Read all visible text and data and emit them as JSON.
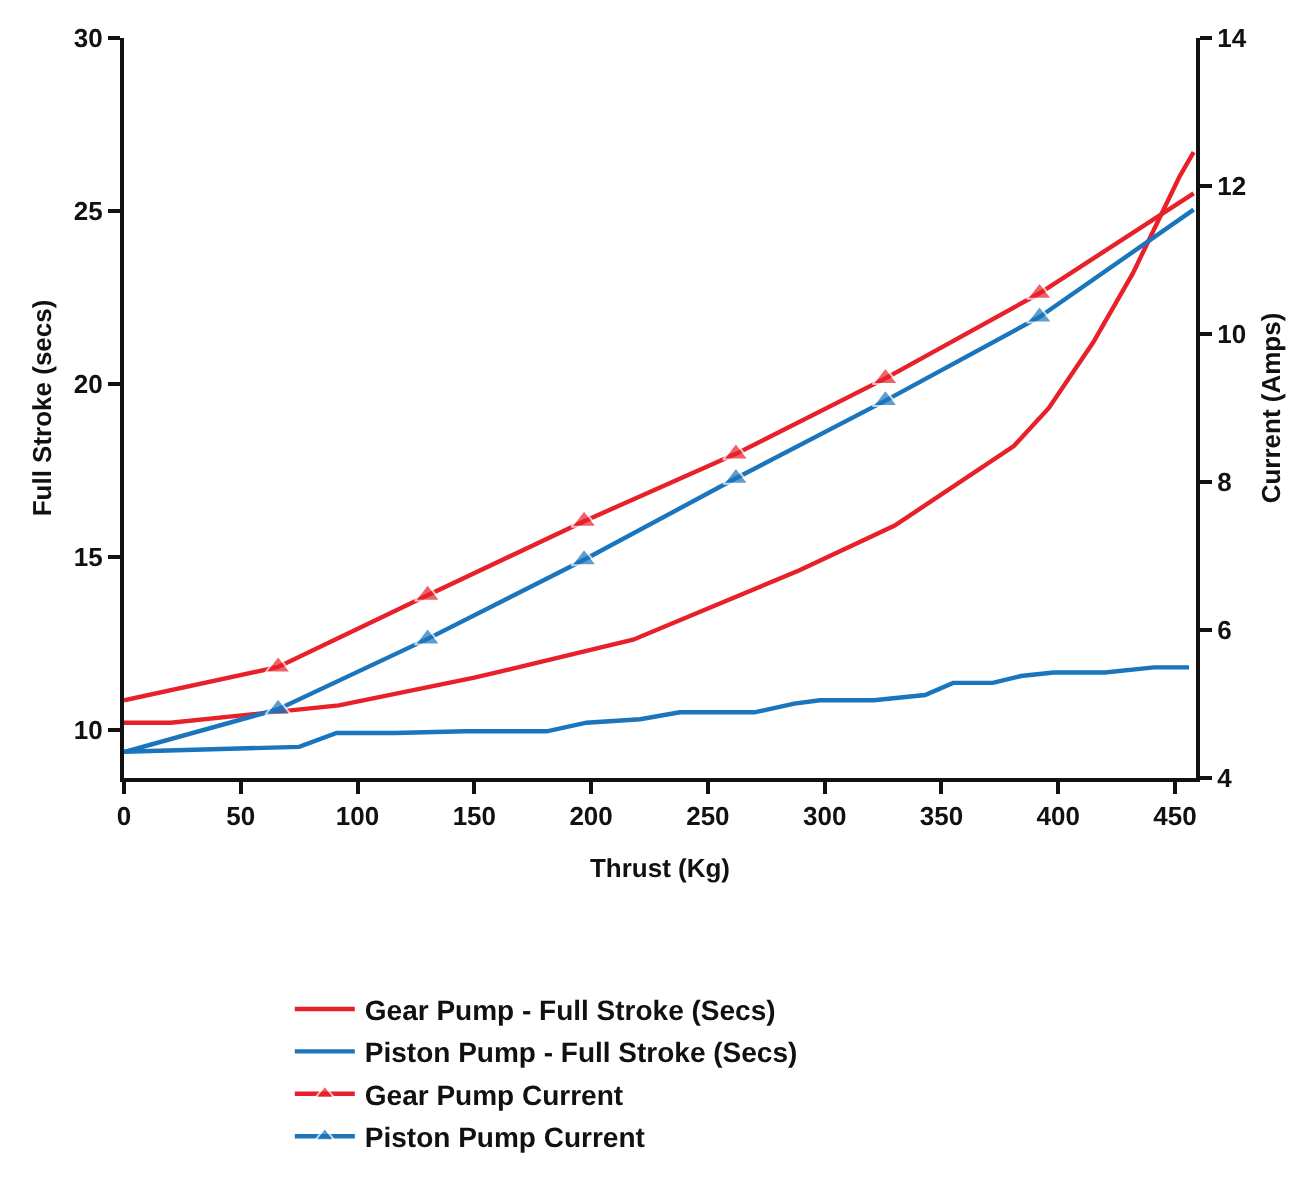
{
  "chart_data": {
    "type": "line",
    "xlabel": "Thrust (Kg)",
    "ylabel": "Full Stroke (secs)",
    "y2label": "Current (Amps)",
    "xlim": [
      0,
      459
    ],
    "xticks": [
      0,
      50,
      100,
      150,
      200,
      250,
      300,
      350,
      400,
      450
    ],
    "ylim": [
      8.6,
      30
    ],
    "yticks": [
      10,
      15,
      20,
      25,
      30
    ],
    "y2lim": [
      4,
      14
    ],
    "y2ticks": [
      4,
      6,
      8,
      10,
      12,
      14
    ],
    "grid": false,
    "legend": "bottom",
    "line_style": "solid",
    "series": [
      {
        "name": "Gear Pump - Full Stroke (Secs)",
        "color": "#e8202a",
        "marker": "none",
        "x": [
          0,
          20,
          92,
          150,
          218,
          250,
          289,
          330,
          381,
          396,
          415,
          432,
          452,
          458
        ],
        "values": [
          10.2,
          10.2,
          10.7,
          11.5,
          12.6,
          13.5,
          14.6,
          15.9,
          18.2,
          19.3,
          21.2,
          23.2,
          26.0,
          26.7
        ]
      },
      {
        "name": "Piston Pump - Full Stroke (Secs)",
        "color": "#1a75bc",
        "marker": "none",
        "x": [
          0,
          75,
          91,
          116,
          146,
          181,
          198,
          221,
          238,
          270,
          287,
          298,
          321,
          343,
          355,
          372,
          384,
          398,
          420,
          441,
          456
        ],
        "values": [
          9.36,
          9.5,
          9.9,
          9.9,
          9.95,
          9.95,
          10.2,
          10.3,
          10.5,
          10.5,
          10.75,
          10.85,
          10.85,
          11.0,
          11.35,
          11.35,
          11.55,
          11.65,
          11.65,
          11.8,
          11.8
        ]
      },
      {
        "name": "Gear Pump Current",
        "color": "#e8202a",
        "marker": "triangle",
        "axis": "y2",
        "x": [
          0,
          66,
          130,
          197,
          262,
          326,
          392,
          458
        ],
        "values": [
          5.05,
          5.5,
          6.47,
          7.47,
          8.38,
          9.4,
          10.55,
          11.9
        ]
      },
      {
        "name": "Piston Pump Current",
        "color": "#1a75bc",
        "marker": "triangle",
        "axis": "y2",
        "x": [
          0,
          66,
          130,
          197,
          262,
          326,
          392,
          458
        ],
        "values": [
          4.35,
          4.93,
          5.88,
          6.95,
          8.05,
          9.1,
          10.23,
          11.68
        ]
      }
    ]
  }
}
